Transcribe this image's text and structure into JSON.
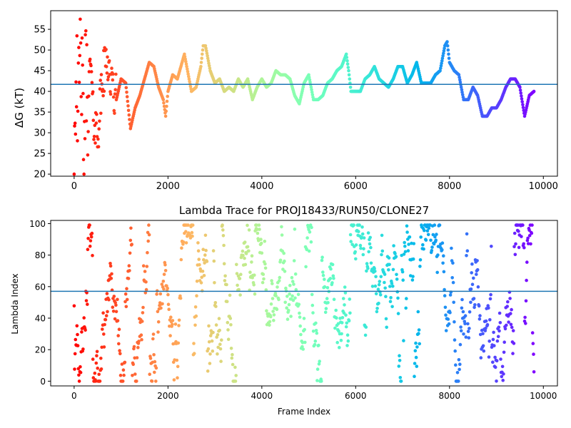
{
  "chart_data": [
    {
      "type": "scatter",
      "title": "",
      "xlabel": "",
      "ylabel": "ΔG (kT)",
      "xlim": [
        -500,
        10300
      ],
      "ylim": [
        19.5,
        59.5
      ],
      "xticks": [
        "0",
        "2000",
        "4000",
        "6000",
        "8000",
        "10000"
      ],
      "yticks": [
        "20",
        "25",
        "30",
        "35",
        "40",
        "45",
        "50",
        "55"
      ],
      "grid": false,
      "colormap": "rainbow (red at frame 0 → violet at the final frame)",
      "reference_line": {
        "y": 41.7,
        "color": "#1f77b4"
      },
      "series": [
        {
          "x_range": [
            0,
            9800
          ],
          "approx_step": 10,
          "description_points": [
            [
              0,
              20
            ],
            [
              0,
              58
            ],
            [
              20,
              30
            ],
            [
              40,
              46
            ],
            [
              60,
              55
            ],
            [
              80,
              24
            ],
            [
              100,
              40
            ],
            [
              150,
              51
            ],
            [
              200,
              22
            ],
            [
              250,
              45
            ],
            [
              300,
              36
            ],
            [
              350,
              48
            ],
            [
              400,
              34
            ],
            [
              500,
              30
            ],
            [
              600,
              42
            ],
            [
              700,
              49
            ],
            [
              800,
              41
            ],
            [
              900,
              38
            ],
            [
              1000,
              43
            ],
            [
              1100,
              42
            ],
            [
              1200,
              31
            ],
            [
              1300,
              36
            ],
            [
              1400,
              39
            ],
            [
              1500,
              43
            ],
            [
              1600,
              47
            ],
            [
              1700,
              46
            ],
            [
              1800,
              41
            ],
            [
              1900,
              38
            ],
            [
              1950,
              34
            ],
            [
              2000,
              40
            ],
            [
              2100,
              44
            ],
            [
              2200,
              43
            ],
            [
              2300,
              47
            ],
            [
              2350,
              49
            ],
            [
              2400,
              46
            ],
            [
              2500,
              40
            ],
            [
              2600,
              41
            ],
            [
              2700,
              46
            ],
            [
              2750,
              51
            ],
            [
              2800,
              51
            ],
            [
              2900,
              45
            ],
            [
              3000,
              42
            ],
            [
              3100,
              43
            ],
            [
              3200,
              40
            ],
            [
              3300,
              41
            ],
            [
              3400,
              40
            ],
            [
              3500,
              43
            ],
            [
              3600,
              41
            ],
            [
              3700,
              43
            ],
            [
              3800,
              38
            ],
            [
              3900,
              41
            ],
            [
              4000,
              43
            ],
            [
              4100,
              41
            ],
            [
              4200,
              42
            ],
            [
              4300,
              45
            ],
            [
              4400,
              44
            ],
            [
              4500,
              44
            ],
            [
              4600,
              43
            ],
            [
              4700,
              39
            ],
            [
              4800,
              37
            ],
            [
              4900,
              42
            ],
            [
              5000,
              44
            ],
            [
              5100,
              38
            ],
            [
              5200,
              38
            ],
            [
              5300,
              39
            ],
            [
              5400,
              42
            ],
            [
              5500,
              43
            ],
            [
              5600,
              45
            ],
            [
              5700,
              46
            ],
            [
              5800,
              49
            ],
            [
              5850,
              45
            ],
            [
              5900,
              40
            ],
            [
              6000,
              40
            ],
            [
              6100,
              40
            ],
            [
              6200,
              43
            ],
            [
              6300,
              44
            ],
            [
              6400,
              46
            ],
            [
              6500,
              43
            ],
            [
              6600,
              42
            ],
            [
              6700,
              41
            ],
            [
              6800,
              43
            ],
            [
              6900,
              46
            ],
            [
              7000,
              46
            ],
            [
              7100,
              42
            ],
            [
              7200,
              44
            ],
            [
              7300,
              47
            ],
            [
              7400,
              42
            ],
            [
              7500,
              42
            ],
            [
              7600,
              42
            ],
            [
              7700,
              44
            ],
            [
              7800,
              45
            ],
            [
              7900,
              51
            ],
            [
              7950,
              52
            ],
            [
              8000,
              47
            ],
            [
              8100,
              45
            ],
            [
              8200,
              44
            ],
            [
              8300,
              38
            ],
            [
              8400,
              38
            ],
            [
              8500,
              41
            ],
            [
              8600,
              39
            ],
            [
              8700,
              34
            ],
            [
              8800,
              34
            ],
            [
              8900,
              36
            ],
            [
              9000,
              36
            ],
            [
              9100,
              38
            ],
            [
              9200,
              41
            ],
            [
              9300,
              43
            ],
            [
              9400,
              43
            ],
            [
              9500,
              41
            ],
            [
              9600,
              34
            ],
            [
              9700,
              39
            ],
            [
              9800,
              40
            ]
          ]
        }
      ]
    },
    {
      "type": "scatter",
      "title": "Lambda Trace for PROJ18433/RUN50/CLONE27",
      "xlabel": "Frame Index",
      "ylabel": "Lambda Index",
      "xlim": [
        -500,
        10300
      ],
      "ylim": [
        -3,
        102
      ],
      "xticks": [
        "0",
        "2000",
        "4000",
        "6000",
        "8000",
        "10000"
      ],
      "yticks": [
        "0",
        "20",
        "40",
        "60",
        "80",
        "100"
      ],
      "grid": false,
      "colormap": "rainbow (red at frame 0 → violet at the final frame)",
      "reference_line": {
        "y": 57,
        "color": "#1f77b4"
      },
      "series": [
        {
          "x_range": [
            0,
            9800
          ],
          "y_range": [
            0,
            99
          ],
          "approx_step": 10,
          "description": "dense random walk across lambda indices 0–99 for every frame"
        }
      ]
    }
  ]
}
